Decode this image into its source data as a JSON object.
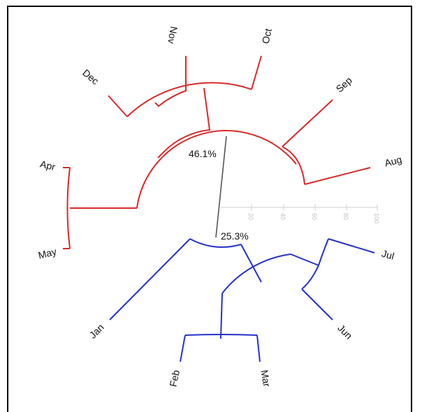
{
  "diagram": {
    "type": "circular-dendrogram",
    "colors": {
      "upper_cluster": "#d62a2a",
      "lower_cluster": "#2631c8",
      "stem": "#555555",
      "scale": "#d0d0d0"
    },
    "percent_labels": {
      "upper": "46.1%",
      "lower": "25.3%"
    },
    "scale_ticks": [
      "20",
      "40",
      "60",
      "80",
      "100"
    ],
    "leaves": {
      "nov": "Nov",
      "oct": "Oct",
      "dec": "Dec",
      "sep": "Sep",
      "aug": "Aug",
      "apr": "Apr",
      "may": "May",
      "jan": "Jan",
      "jul": "Jul",
      "jun": "Jun",
      "feb": "Feb",
      "mar": "Mar"
    }
  }
}
